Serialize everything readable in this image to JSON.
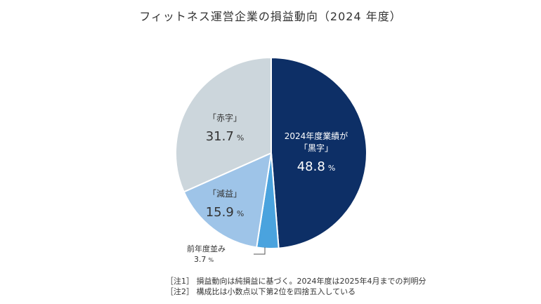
{
  "chart_data": {
    "type": "pie",
    "title": "フィットネス運営企業の損益動向（2024 年度）",
    "slices": [
      {
        "label_lines": [
          "2024年度業績が",
          "「黒字」"
        ],
        "value": 48.8,
        "value_text": "48.8",
        "unit": "%",
        "color": "#0d2f66",
        "text_color": "#ffffff"
      },
      {
        "label_lines": [
          "前年度並み"
        ],
        "value": 3.7,
        "value_text": "3.7",
        "unit": "%",
        "color": "#4aa3de",
        "text_color": "#333333",
        "external": true
      },
      {
        "label_lines": [
          "「減益」"
        ],
        "value": 15.9,
        "value_text": "15.9",
        "unit": "%",
        "color": "#9ec4e8",
        "text_color": "#333333"
      },
      {
        "label_lines": [
          "「赤字」"
        ],
        "value": 31.7,
        "value_text": "31.7",
        "unit": "%",
        "color": "#ccd6dc",
        "text_color": "#333333"
      }
    ],
    "start": "12 o'clock",
    "direction": "clockwise",
    "legend": "none"
  },
  "notes": [
    "［注1］ 損益動向は純損益に基づく。2024年度は2025年4月までの判明分",
    "［注2］ 構成比は小数点以下第2位を四捨五入している"
  ]
}
